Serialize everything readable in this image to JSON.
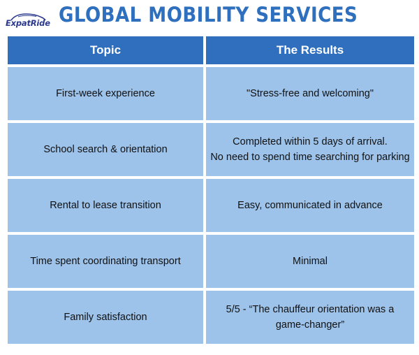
{
  "brand": {
    "logo_text": "ExpatRide",
    "title": "GLOBAL MOBILITY SERVICES",
    "title_color": "#2e6fbe",
    "header_color": "#2f6fbd",
    "cell_color": "#9dc3ea"
  },
  "table": {
    "headers": [
      "Topic",
      "The Results"
    ],
    "rows": [
      {
        "topic": "First-week experience",
        "result_lines": [
          "\"Stress-free and welcoming\""
        ]
      },
      {
        "topic": "School search & orientation",
        "result_lines": [
          "Completed within 5 days of arrival.",
          "No need to spend time searching for parking"
        ]
      },
      {
        "topic": "Rental to lease transition",
        "result_lines": [
          "Easy, communicated in advance"
        ]
      },
      {
        "topic": "Time spent coordinating transport",
        "result_lines": [
          "Minimal"
        ]
      },
      {
        "topic": "Family satisfaction",
        "result_lines": [
          "5/5 - “The chauffeur orientation was a",
          "game-changer”"
        ]
      }
    ]
  }
}
